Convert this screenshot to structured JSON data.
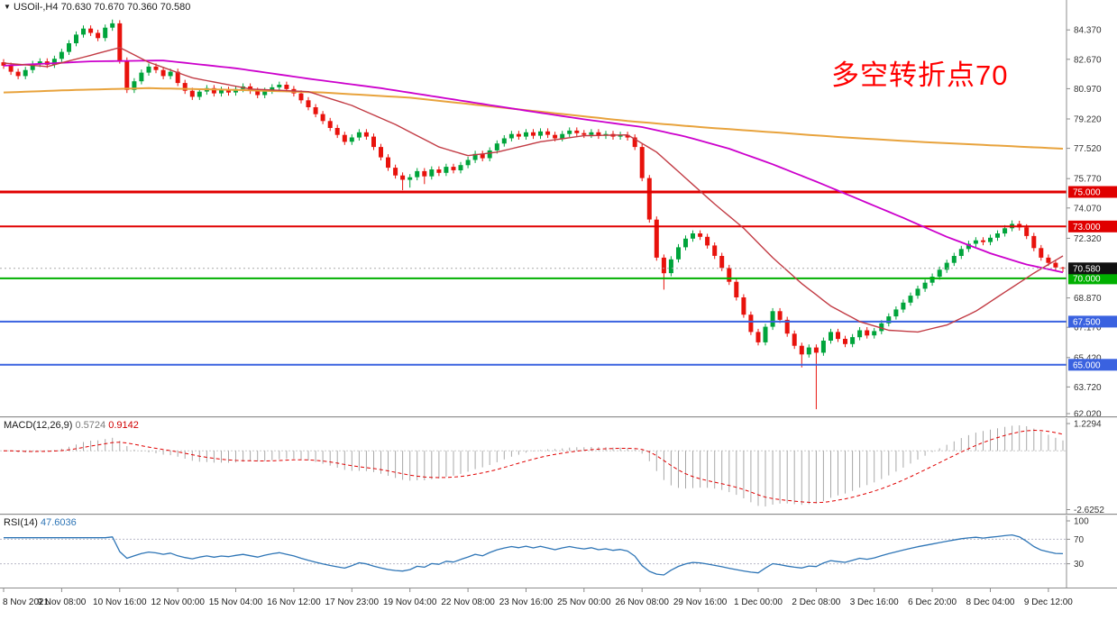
{
  "header": {
    "marker": "▼",
    "symbol": "USOil-,H4",
    "open": "70.630",
    "high": "70.670",
    "low": "70.360",
    "close": "70.580"
  },
  "annotation": {
    "text": "多空转折点70",
    "color": "#FF0000"
  },
  "colors": {
    "up": "#00A43B",
    "down": "#E8120C",
    "axis_line": "#8C8C8C",
    "axis_text": "#333333",
    "current_line": "#AAAAAA",
    "current_tag_bg": "#111111"
  },
  "chart_data": {
    "type": "candlestick",
    "symbol": "USOil-",
    "timeframe": "H4",
    "label_step": 8,
    "x_labels": [
      "8 Nov 2021",
      "9 Nov 08:00",
      "10 Nov 16:00",
      "12 Nov 00:00",
      "15 Nov 04:00",
      "16 Nov 12:00",
      "17 Nov 23:00",
      "19 Nov 04:00",
      "22 Nov 08:00",
      "23 Nov 16:00",
      "25 Nov 00:00",
      "26 Nov 08:00",
      "29 Nov 16:00",
      "1 Dec 00:00",
      "2 Dec 08:00",
      "3 Dec 16:00",
      "6 Dec 20:00",
      "8 Dec 04:00",
      "9 Dec 12:00"
    ],
    "price_axis": {
      "min": 62.02,
      "max": 86.1,
      "ticks": [
        "84.370",
        "82.670",
        "80.970",
        "79.220",
        "77.520",
        "75.770",
        "74.070",
        "72.320",
        "68.870",
        "67.170",
        "65.420",
        "63.720",
        "62.020"
      ]
    },
    "current_price": {
      "value": 70.58,
      "label": "70.580"
    },
    "levels": [
      {
        "price": 75.0,
        "label": "75.000",
        "color": "#E00000",
        "width": 3
      },
      {
        "price": 73.0,
        "label": "73.000",
        "color": "#E00000",
        "width": 2
      },
      {
        "price": 70.0,
        "label": "70.000",
        "color": "#00B000",
        "width": 2
      },
      {
        "price": 67.5,
        "label": "67.500",
        "color": "#3A62E0",
        "width": 2
      },
      {
        "price": 65.0,
        "label": "65.000",
        "color": "#3A62E0",
        "width": 2
      }
    ],
    "moving_averages": [
      {
        "name": "slow-ma",
        "color": "#E8A33D",
        "width": 2,
        "points": [
          [
            0,
            80.75
          ],
          [
            10,
            80.9
          ],
          [
            20,
            81.0
          ],
          [
            32,
            80.9
          ],
          [
            44,
            80.75
          ],
          [
            56,
            80.45
          ],
          [
            66,
            80.0
          ],
          [
            76,
            79.55
          ],
          [
            86,
            79.1
          ],
          [
            96,
            78.75
          ],
          [
            106,
            78.45
          ],
          [
            116,
            78.15
          ],
          [
            126,
            77.9
          ],
          [
            136,
            77.7
          ],
          [
            146,
            77.5
          ]
        ]
      },
      {
        "name": "medium-ma",
        "color": "#CC00CC",
        "width": 1.8,
        "points": [
          [
            0,
            82.3
          ],
          [
            12,
            82.55
          ],
          [
            22,
            82.6
          ],
          [
            32,
            82.15
          ],
          [
            42,
            81.55
          ],
          [
            52,
            81.0
          ],
          [
            62,
            80.35
          ],
          [
            72,
            79.7
          ],
          [
            80,
            79.2
          ],
          [
            88,
            78.75
          ],
          [
            94,
            78.2
          ],
          [
            100,
            77.5
          ],
          [
            106,
            76.6
          ],
          [
            112,
            75.6
          ],
          [
            118,
            74.55
          ],
          [
            124,
            73.5
          ],
          [
            130,
            72.4
          ],
          [
            136,
            71.45
          ],
          [
            141,
            70.8
          ],
          [
            146,
            70.35
          ]
        ]
      },
      {
        "name": "fast-ma",
        "color": "#C23B44",
        "width": 1.4,
        "points": [
          [
            0,
            82.45
          ],
          [
            6,
            82.25
          ],
          [
            12,
            82.9
          ],
          [
            16,
            83.35
          ],
          [
            20,
            82.5
          ],
          [
            26,
            81.6
          ],
          [
            34,
            80.95
          ],
          [
            42,
            80.8
          ],
          [
            48,
            80.0
          ],
          [
            54,
            78.9
          ],
          [
            60,
            77.6
          ],
          [
            64,
            77.1
          ],
          [
            68,
            77.3
          ],
          [
            74,
            77.9
          ],
          [
            80,
            78.25
          ],
          [
            86,
            78.3
          ],
          [
            90,
            77.3
          ],
          [
            94,
            75.8
          ],
          [
            98,
            74.3
          ],
          [
            102,
            72.9
          ],
          [
            106,
            71.2
          ],
          [
            110,
            69.7
          ],
          [
            114,
            68.4
          ],
          [
            118,
            67.5
          ],
          [
            122,
            67.0
          ],
          [
            126,
            66.9
          ],
          [
            130,
            67.3
          ],
          [
            134,
            68.1
          ],
          [
            138,
            69.2
          ],
          [
            142,
            70.3
          ],
          [
            146,
            71.3
          ]
        ]
      }
    ],
    "candles": [
      [
        82.5,
        82.68,
        82.12,
        82.3
      ],
      [
        82.3,
        82.48,
        81.77,
        81.95
      ],
      [
        81.95,
        82.13,
        81.52,
        81.7
      ],
      [
        81.7,
        82.23,
        81.52,
        82.05
      ],
      [
        82.05,
        82.58,
        81.87,
        82.4
      ],
      [
        82.4,
        82.73,
        82.22,
        82.55
      ],
      [
        82.55,
        82.73,
        82.17,
        82.35
      ],
      [
        82.35,
        82.88,
        82.17,
        82.7
      ],
      [
        82.7,
        83.28,
        82.52,
        83.1
      ],
      [
        83.1,
        83.78,
        82.92,
        83.6
      ],
      [
        83.6,
        84.28,
        83.42,
        84.1
      ],
      [
        84.1,
        84.63,
        83.92,
        84.45
      ],
      [
        84.45,
        84.63,
        84.02,
        84.2
      ],
      [
        84.2,
        84.38,
        83.72,
        83.9
      ],
      [
        83.9,
        84.68,
        83.72,
        84.5
      ],
      [
        84.5,
        84.97,
        84.32,
        84.75
      ],
      [
        84.75,
        84.93,
        82.42,
        82.6
      ],
      [
        82.6,
        82.78,
        80.72,
        80.9
      ],
      [
        80.9,
        81.58,
        80.72,
        81.4
      ],
      [
        81.4,
        82.08,
        81.22,
        81.9
      ],
      [
        81.9,
        82.43,
        81.72,
        82.25
      ],
      [
        82.25,
        82.43,
        81.87,
        82.05
      ],
      [
        82.05,
        82.23,
        81.52,
        81.7
      ],
      [
        81.7,
        82.13,
        81.52,
        81.95
      ],
      [
        81.95,
        82.13,
        81.12,
        81.3
      ],
      [
        81.3,
        81.48,
        80.67,
        80.85
      ],
      [
        80.85,
        81.03,
        80.32,
        80.5
      ],
      [
        80.5,
        80.98,
        80.32,
        80.8
      ],
      [
        80.8,
        81.18,
        80.62,
        81.0
      ],
      [
        81.0,
        81.18,
        80.52,
        80.7
      ],
      [
        80.7,
        81.08,
        80.52,
        80.9
      ],
      [
        80.9,
        81.08,
        80.57,
        80.75
      ],
      [
        80.75,
        81.13,
        80.57,
        80.95
      ],
      [
        80.95,
        81.28,
        80.77,
        81.1
      ],
      [
        81.1,
        81.28,
        80.67,
        80.85
      ],
      [
        80.85,
        81.03,
        80.42,
        80.6
      ],
      [
        80.6,
        81.03,
        80.42,
        80.85
      ],
      [
        80.85,
        81.23,
        80.67,
        81.05
      ],
      [
        81.05,
        81.38,
        80.87,
        81.2
      ],
      [
        81.2,
        81.38,
        80.77,
        80.95
      ],
      [
        80.95,
        81.13,
        80.52,
        80.7
      ],
      [
        80.7,
        80.88,
        80.12,
        80.3
      ],
      [
        80.3,
        80.48,
        79.72,
        79.9
      ],
      [
        79.9,
        80.08,
        79.32,
        79.5
      ],
      [
        79.5,
        79.68,
        78.92,
        79.1
      ],
      [
        79.1,
        79.28,
        78.52,
        78.7
      ],
      [
        78.7,
        78.88,
        78.12,
        78.3
      ],
      [
        78.3,
        78.48,
        77.72,
        77.9
      ],
      [
        77.9,
        78.33,
        77.72,
        78.15
      ],
      [
        78.15,
        78.63,
        77.97,
        78.45
      ],
      [
        78.45,
        78.63,
        78.02,
        78.2
      ],
      [
        78.2,
        78.38,
        77.42,
        77.6
      ],
      [
        77.6,
        77.78,
        76.82,
        77.0
      ],
      [
        77.0,
        77.18,
        76.22,
        76.4
      ],
      [
        76.4,
        76.58,
        75.77,
        75.95
      ],
      [
        75.95,
        76.13,
        75.1,
        75.7
      ],
      [
        75.7,
        76.03,
        75.25,
        75.85
      ],
      [
        75.85,
        76.38,
        75.67,
        76.2
      ],
      [
        76.2,
        76.38,
        75.45,
        75.9
      ],
      [
        75.9,
        76.48,
        75.72,
        76.3
      ],
      [
        76.3,
        76.48,
        75.92,
        76.1
      ],
      [
        76.1,
        76.63,
        75.92,
        76.45
      ],
      [
        76.45,
        76.63,
        76.07,
        76.25
      ],
      [
        76.25,
        76.73,
        76.07,
        76.55
      ],
      [
        76.55,
        77.03,
        76.37,
        76.85
      ],
      [
        76.85,
        77.38,
        76.67,
        77.2
      ],
      [
        77.2,
        77.38,
        76.77,
        76.95
      ],
      [
        76.95,
        77.58,
        76.77,
        77.4
      ],
      [
        77.4,
        77.98,
        77.22,
        77.8
      ],
      [
        77.8,
        78.28,
        77.62,
        78.1
      ],
      [
        78.1,
        78.53,
        77.92,
        78.35
      ],
      [
        78.35,
        78.53,
        78.02,
        78.2
      ],
      [
        78.2,
        78.63,
        78.02,
        78.45
      ],
      [
        78.45,
        78.63,
        78.07,
        78.25
      ],
      [
        78.25,
        78.68,
        78.07,
        78.5
      ],
      [
        78.5,
        78.68,
        78.12,
        78.3
      ],
      [
        78.3,
        78.48,
        77.92,
        78.1
      ],
      [
        78.1,
        78.53,
        77.92,
        78.35
      ],
      [
        78.35,
        78.73,
        78.17,
        78.55
      ],
      [
        78.55,
        78.73,
        78.22,
        78.4
      ],
      [
        78.4,
        78.58,
        78.12,
        78.3
      ],
      [
        78.3,
        78.63,
        78.12,
        78.45
      ],
      [
        78.45,
        78.63,
        78.07,
        78.25
      ],
      [
        78.25,
        78.53,
        78.07,
        78.35
      ],
      [
        78.35,
        78.53,
        78.02,
        78.2
      ],
      [
        78.2,
        78.48,
        78.02,
        78.3
      ],
      [
        78.3,
        78.48,
        77.97,
        78.15
      ],
      [
        78.15,
        78.33,
        77.42,
        77.6
      ],
      [
        77.6,
        77.78,
        75.62,
        75.8
      ],
      [
        75.8,
        75.98,
        73.22,
        73.4
      ],
      [
        73.4,
        73.58,
        71.02,
        71.2
      ],
      [
        71.2,
        71.38,
        69.35,
        70.3
      ],
      [
        70.3,
        71.28,
        70.12,
        71.1
      ],
      [
        71.1,
        71.98,
        70.92,
        71.8
      ],
      [
        71.8,
        72.48,
        71.62,
        72.3
      ],
      [
        72.3,
        72.78,
        72.12,
        72.6
      ],
      [
        72.6,
        72.78,
        72.22,
        72.4
      ],
      [
        72.4,
        72.58,
        71.72,
        71.9
      ],
      [
        71.9,
        72.08,
        71.12,
        71.3
      ],
      [
        71.3,
        71.48,
        70.42,
        70.6
      ],
      [
        70.6,
        70.78,
        69.62,
        69.8
      ],
      [
        69.8,
        69.98,
        68.72,
        68.9
      ],
      [
        68.9,
        69.08,
        67.72,
        67.9
      ],
      [
        67.9,
        68.08,
        66.72,
        66.9
      ],
      [
        66.9,
        67.08,
        66.12,
        66.3
      ],
      [
        66.3,
        67.38,
        66.12,
        67.2
      ],
      [
        67.2,
        68.28,
        67.02,
        68.1
      ],
      [
        68.1,
        68.28,
        67.42,
        67.6
      ],
      [
        67.6,
        67.78,
        66.62,
        66.8
      ],
      [
        66.8,
        66.98,
        65.92,
        66.1
      ],
      [
        66.1,
        66.28,
        64.85,
        65.6
      ],
      [
        65.6,
        66.18,
        65.42,
        66.0
      ],
      [
        66.0,
        66.18,
        62.43,
        65.7
      ],
      [
        65.7,
        66.58,
        65.52,
        66.4
      ],
      [
        66.4,
        67.08,
        66.22,
        66.9
      ],
      [
        66.9,
        67.08,
        66.32,
        66.5
      ],
      [
        66.5,
        66.68,
        66.02,
        66.2
      ],
      [
        66.2,
        66.78,
        66.02,
        66.6
      ],
      [
        66.6,
        67.18,
        66.42,
        67.0
      ],
      [
        67.0,
        67.18,
        66.52,
        66.7
      ],
      [
        66.7,
        67.13,
        66.52,
        66.95
      ],
      [
        66.95,
        67.58,
        66.77,
        67.4
      ],
      [
        67.4,
        67.98,
        67.22,
        67.8
      ],
      [
        67.8,
        68.38,
        67.62,
        68.2
      ],
      [
        68.2,
        68.78,
        68.02,
        68.6
      ],
      [
        68.6,
        69.18,
        68.42,
        69.0
      ],
      [
        69.0,
        69.58,
        68.82,
        69.4
      ],
      [
        69.4,
        69.93,
        69.22,
        69.75
      ],
      [
        69.75,
        70.28,
        69.57,
        70.1
      ],
      [
        70.1,
        70.68,
        69.92,
        70.5
      ],
      [
        70.5,
        71.08,
        70.32,
        70.9
      ],
      [
        70.9,
        71.48,
        70.72,
        71.3
      ],
      [
        71.3,
        71.88,
        71.12,
        71.7
      ],
      [
        71.7,
        72.18,
        71.52,
        72.0
      ],
      [
        72.0,
        72.38,
        71.82,
        72.2
      ],
      [
        72.2,
        72.38,
        71.92,
        72.1
      ],
      [
        72.1,
        72.53,
        71.92,
        72.35
      ],
      [
        72.35,
        72.78,
        72.17,
        72.6
      ],
      [
        72.6,
        73.08,
        72.42,
        72.9
      ],
      [
        72.9,
        73.35,
        72.72,
        73.15
      ],
      [
        73.15,
        73.33,
        72.77,
        72.95
      ],
      [
        72.95,
        73.13,
        72.27,
        72.45
      ],
      [
        72.45,
        72.63,
        71.57,
        71.75
      ],
      [
        71.75,
        71.93,
        71.02,
        71.2
      ],
      [
        71.2,
        71.38,
        70.72,
        70.9
      ],
      [
        70.9,
        71.08,
        70.45,
        70.63
      ],
      [
        70.63,
        70.67,
        70.36,
        70.58
      ]
    ],
    "macd": {
      "label": "MACD(12,26,9)",
      "fast": 12,
      "slow": 26,
      "signal_period": 9,
      "value_main": "0.5724",
      "value_signal": "0.9142",
      "axis_ticks": [
        "1.2294",
        "-2.6252"
      ],
      "histogram_color": "#A8A8A8",
      "signal_color": "#E00000"
    },
    "rsi": {
      "label": "RSI(14)",
      "period": 14,
      "value": "47.6036",
      "levels": [
        70,
        30
      ],
      "axis_ticks": [
        "100",
        "70",
        "30"
      ],
      "line_color": "#2E75B6"
    }
  }
}
